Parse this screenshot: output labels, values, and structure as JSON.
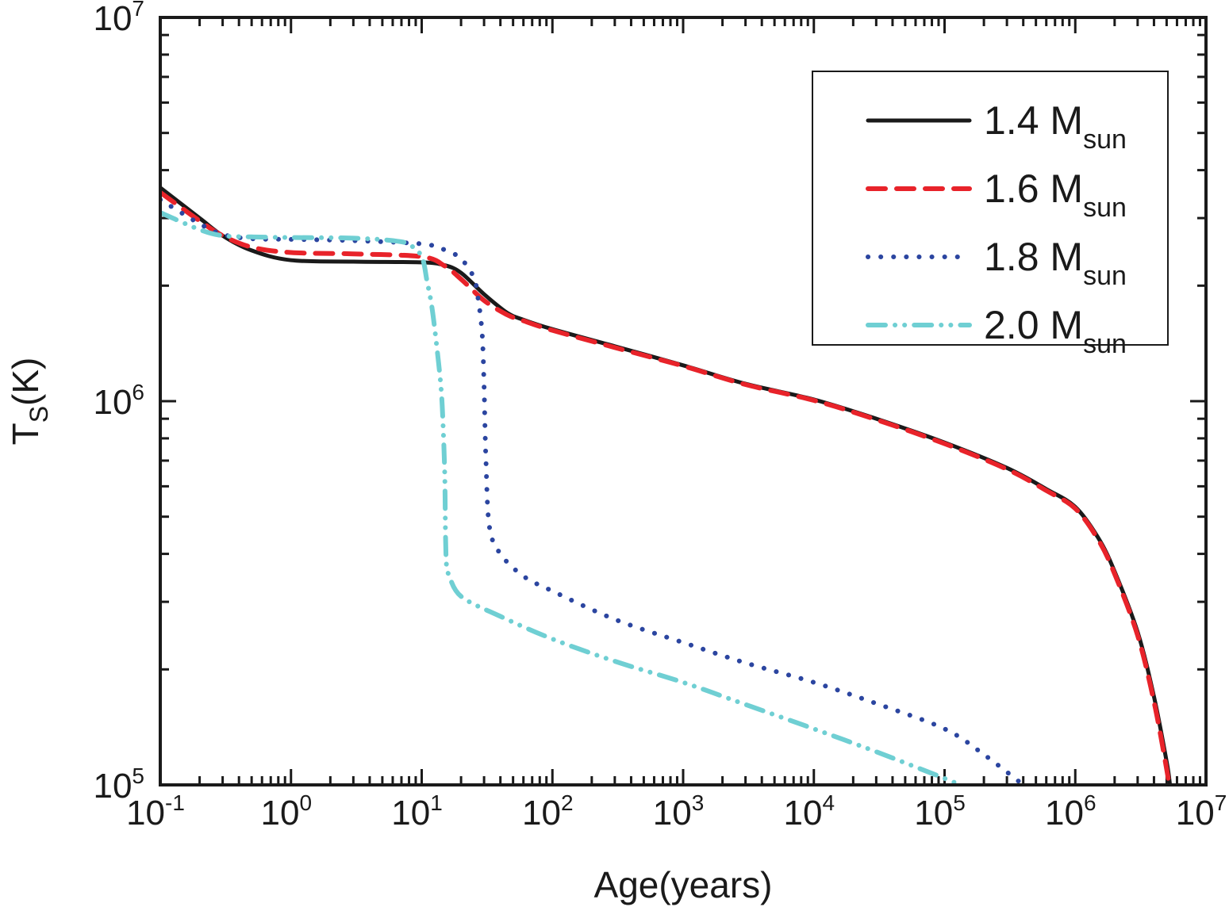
{
  "chart_data": {
    "type": "line",
    "title": "",
    "xlabel": "Age(years)",
    "ylabel": "T",
    "ylabel_sub": "S",
    "ylabel_unit": "(K)",
    "xscale": "log",
    "yscale": "log",
    "xlim": [
      0.1,
      10000000
    ],
    "ylim": [
      100000,
      10000000
    ],
    "grid": false,
    "legend_position": "top-right",
    "x_ticks": [
      {
        "base": "10",
        "exp": "-1"
      },
      {
        "base": "10",
        "exp": "0"
      },
      {
        "base": "10",
        "exp": "1"
      },
      {
        "base": "10",
        "exp": "2"
      },
      {
        "base": "10",
        "exp": "3"
      },
      {
        "base": "10",
        "exp": "4"
      },
      {
        "base": "10",
        "exp": "5"
      },
      {
        "base": "10",
        "exp": "6"
      },
      {
        "base": "10",
        "exp": "7"
      }
    ],
    "y_ticks": [
      {
        "base": "10",
        "exp": "5"
      },
      {
        "base": "10",
        "exp": "6"
      },
      {
        "base": "10",
        "exp": "7"
      }
    ],
    "series": [
      {
        "name": "1.4 M",
        "name_sub": "sun",
        "color": "#1a1a1a",
        "style": "solid",
        "x": [
          0.1,
          0.2,
          0.3,
          0.5,
          1,
          3,
          10,
          15,
          20,
          30,
          45,
          60,
          100,
          300,
          1000,
          3000,
          10000,
          30000,
          100000,
          300000,
          600000,
          1000000,
          1500000,
          2000000,
          3000000,
          4000000,
          5000000,
          5300000
        ],
        "y": [
          3600000,
          3000000,
          2700000,
          2470000,
          2330000,
          2310000,
          2300000,
          2260000,
          2160000,
          1900000,
          1700000,
          1630000,
          1540000,
          1390000,
          1240000,
          1110000,
          1010000,
          900000,
          780000,
          670000,
          590000,
          530000,
          440000,
          360000,
          250000,
          170000,
          115000,
          100000
        ]
      },
      {
        "name": "1.6 M",
        "name_sub": "sun",
        "color": "#e8232a",
        "style": "dashed",
        "x": [
          0.1,
          0.2,
          0.3,
          0.5,
          1,
          3,
          10,
          15,
          20,
          30,
          45,
          60,
          100,
          300,
          1000,
          3000,
          10000,
          30000,
          100000,
          300000,
          600000,
          1000000,
          1500000,
          2000000,
          3000000,
          4000000,
          5000000,
          5200000
        ],
        "y": [
          3500000,
          2950000,
          2700000,
          2520000,
          2440000,
          2420000,
          2380000,
          2250000,
          2080000,
          1830000,
          1680000,
          1620000,
          1530000,
          1380000,
          1235000,
          1105000,
          1005000,
          895000,
          775000,
          665000,
          585000,
          525000,
          435000,
          355000,
          245000,
          165000,
          110000,
          100000
        ]
      },
      {
        "name": "1.8 M",
        "name_sub": "sun",
        "color": "#2b45a0",
        "style": "dotted",
        "x": [
          0.1,
          0.2,
          0.3,
          0.5,
          1,
          3,
          10,
          15,
          20,
          25,
          27,
          29,
          30,
          31,
          33,
          40,
          60,
          100,
          300,
          1000,
          3000,
          10000,
          30000,
          100000,
          200000,
          400000
        ],
        "y": [
          3350000,
          2900000,
          2720000,
          2650000,
          2640000,
          2620000,
          2570000,
          2480000,
          2350000,
          2100000,
          1850000,
          1500000,
          1100000,
          700000,
          470000,
          400000,
          350000,
          320000,
          270000,
          235000,
          208000,
          185000,
          163000,
          140000,
          120000,
          100000
        ]
      },
      {
        "name": "2.0 M",
        "name_sub": "sun",
        "color": "#6fcfd3",
        "style": "dashdotdot",
        "x": [
          0.1,
          0.2,
          0.3,
          0.5,
          1,
          3,
          6,
          8,
          10,
          11,
          12,
          13,
          14,
          14.5,
          15,
          15.2,
          15.5,
          16,
          20,
          40,
          100,
          300,
          1000,
          3000,
          10000,
          30000,
          100000,
          130000
        ],
        "y": [
          3100000,
          2800000,
          2700000,
          2680000,
          2670000,
          2660000,
          2620000,
          2560000,
          2380000,
          2050000,
          1750000,
          1400000,
          1100000,
          900000,
          650000,
          450000,
          370000,
          355000,
          310000,
          275000,
          240000,
          210000,
          185000,
          162000,
          140000,
          122000,
          104000,
          100000
        ]
      }
    ]
  }
}
